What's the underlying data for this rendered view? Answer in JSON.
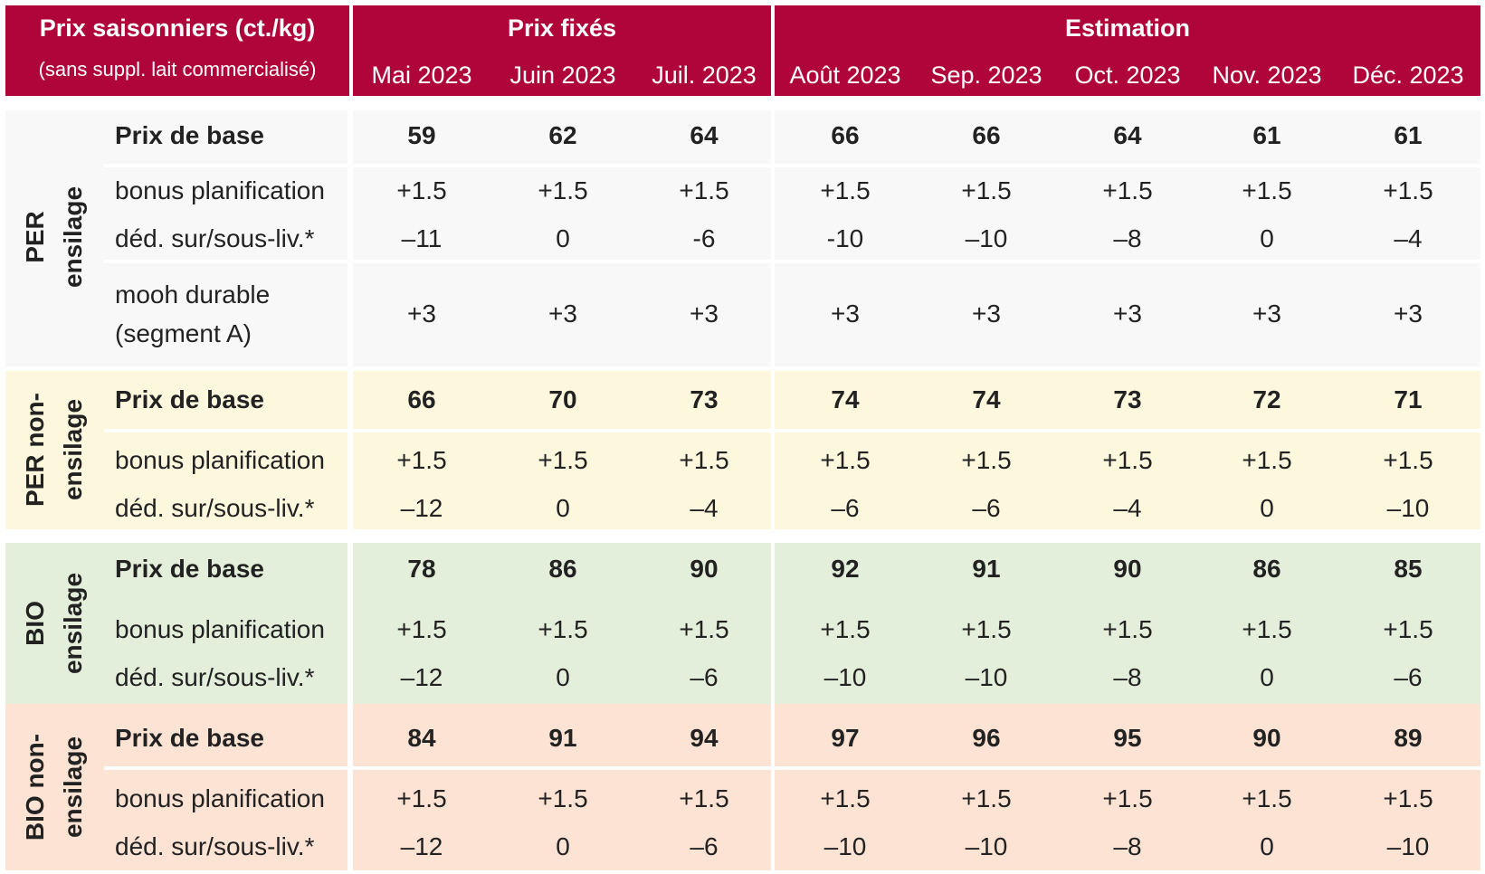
{
  "header": {
    "title": "Prix saisonniers (ct./kg)",
    "subtitle": "(sans suppl. lait commercialisé)",
    "group_fixed": "Prix fixés",
    "group_estimate": "Estimation",
    "months": [
      "Mai 2023",
      "Juin 2023",
      "Juil. 2023",
      "Août 2023",
      "Sep. 2023",
      "Oct. 2023",
      "Nov. 2023",
      "Déc. 2023"
    ]
  },
  "colors": {
    "header": "#b0053a",
    "per_ensilage": "#f8f8f8",
    "per_non_ensilage": "#fdf7dd",
    "bio_ensilage": "#e3efda",
    "bio_non_ensilage": "#fce3d4"
  },
  "sections": [
    {
      "label_lines": [
        "PER",
        "ensilage"
      ],
      "rows": [
        {
          "label": "Prix de base",
          "bold": true,
          "values": [
            "59",
            "62",
            "64",
            "66",
            "66",
            "64",
            "61",
            "61"
          ]
        },
        {
          "label": "bonus planification",
          "bold": false,
          "values": [
            "+1.5",
            "+1.5",
            "+1.5",
            "+1.5",
            "+1.5",
            "+1.5",
            "+1.5",
            "+1.5"
          ]
        },
        {
          "label": "déd. sur/sous-liv.*",
          "bold": false,
          "values": [
            "–11",
            "0",
            "-6",
            "-10",
            "–10",
            "–8",
            "0",
            "–4"
          ]
        },
        {
          "label_lines": [
            "mooh durable",
            "(segment A)"
          ],
          "bold": false,
          "values": [
            "+3",
            "+3",
            "+3",
            "+3",
            "+3",
            "+3",
            "+3",
            "+3"
          ]
        }
      ]
    },
    {
      "label_lines": [
        "PER non-",
        "ensilage"
      ],
      "rows": [
        {
          "label": "Prix de base",
          "bold": true,
          "values": [
            "66",
            "70",
            "73",
            "74",
            "74",
            "73",
            "72",
            "71"
          ]
        },
        {
          "label": "bonus planification",
          "bold": false,
          "values": [
            "+1.5",
            "+1.5",
            "+1.5",
            "+1.5",
            "+1.5",
            "+1.5",
            "+1.5",
            "+1.5"
          ]
        },
        {
          "label": "déd. sur/sous-liv.*",
          "bold": false,
          "values": [
            "–12",
            "0",
            "–4",
            "–6",
            "–6",
            "–4",
            "0",
            "–10"
          ]
        }
      ]
    },
    {
      "label_lines": [
        "BIO",
        "ensilage"
      ],
      "rows": [
        {
          "label": "Prix de base",
          "bold": true,
          "values": [
            "78",
            "86",
            "90",
            "92",
            "91",
            "90",
            "86",
            "85"
          ]
        },
        {
          "label": "bonus planification",
          "bold": false,
          "values": [
            "+1.5",
            "+1.5",
            "+1.5",
            "+1.5",
            "+1.5",
            "+1.5",
            "+1.5",
            "+1.5"
          ]
        },
        {
          "label": "déd. sur/sous-liv.*",
          "bold": false,
          "values": [
            "–12",
            "0",
            "–6",
            "–10",
            "–10",
            "–8",
            "0",
            "–6"
          ]
        }
      ]
    },
    {
      "label_lines": [
        "BIO non-",
        "ensilage"
      ],
      "rows": [
        {
          "label": "Prix de base",
          "bold": true,
          "values": [
            "84",
            "91",
            "94",
            "97",
            "96",
            "95",
            "90",
            "89"
          ]
        },
        {
          "label": "bonus planification",
          "bold": false,
          "values": [
            "+1.5",
            "+1.5",
            "+1.5",
            "+1.5",
            "+1.5",
            "+1.5",
            "+1.5",
            "+1.5"
          ]
        },
        {
          "label": "déd. sur/sous-liv.*",
          "bold": false,
          "values": [
            "–12",
            "0",
            "–6",
            "–10",
            "–10",
            "–8",
            "0",
            "–10"
          ]
        }
      ]
    }
  ]
}
